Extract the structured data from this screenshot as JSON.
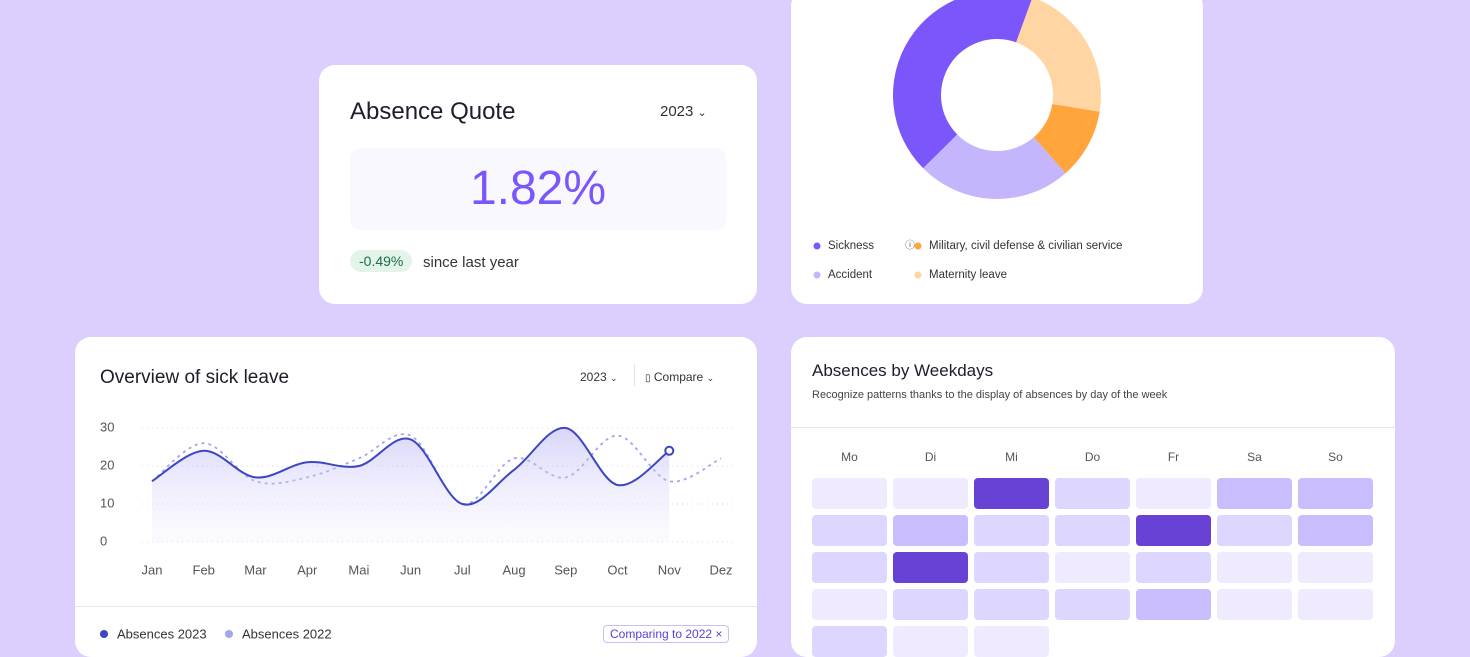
{
  "absence_quote": {
    "title": "Absence Quote",
    "year": "2023",
    "value": "1.82%",
    "change": "-0.49%",
    "change_text": "since last year"
  },
  "chart_data": [
    {
      "type": "pie",
      "donut": true,
      "categories": [
        "Sickness",
        "Accident",
        "Military, civil defense & civilian service",
        "Maternity leave"
      ],
      "values": [
        43,
        24,
        11,
        22
      ],
      "colors": [
        "#7b57fb",
        "#c4b5fd",
        "#ffa53b",
        "#ffd5a3"
      ]
    },
    {
      "type": "line",
      "title": "Overview of sick leave",
      "year": "2023",
      "compare": "Compare",
      "categories": [
        "Jan",
        "Feb",
        "Mar",
        "Apr",
        "Mai",
        "Jun",
        "Jul",
        "Aug",
        "Sep",
        "Oct",
        "Nov",
        "Dez"
      ],
      "ylim": [
        0,
        30
      ],
      "yticks": [
        0,
        10,
        20,
        30
      ],
      "grid": true,
      "series": [
        {
          "name": "Absences 2023",
          "color": "#3d45c2",
          "values": [
            16,
            24,
            17,
            21,
            20,
            27,
            10,
            19,
            30,
            15,
            24,
            null
          ]
        },
        {
          "name": "Absences 2022",
          "color": "#a3a6ea",
          "dashed": true,
          "values": [
            16,
            26,
            16,
            17,
            22,
            28,
            10,
            22,
            17,
            28,
            16,
            22
          ]
        }
      ],
      "badge": "Comparing to 2022"
    },
    {
      "type": "heatmap",
      "title": "Absences by Weekdays",
      "subtitle": "Recognize patterns thanks to the display of absences by day of the week",
      "columns": [
        "Mo",
        "Di",
        "Mi",
        "Do",
        "Fr",
        "Sa",
        "So"
      ],
      "values": [
        [
          1,
          1,
          5,
          2,
          1,
          3,
          3
        ],
        [
          2,
          3,
          2,
          2,
          5,
          2,
          3
        ],
        [
          2,
          5,
          2,
          1,
          2,
          1,
          1
        ],
        [
          1,
          2,
          2,
          2,
          3,
          1,
          1
        ],
        [
          2,
          1,
          1
        ]
      ],
      "colorscale": [
        "#efeafe",
        "#ddd6fe",
        "#c9bdfd",
        "#a08bfa",
        "#6842d4"
      ]
    }
  ]
}
